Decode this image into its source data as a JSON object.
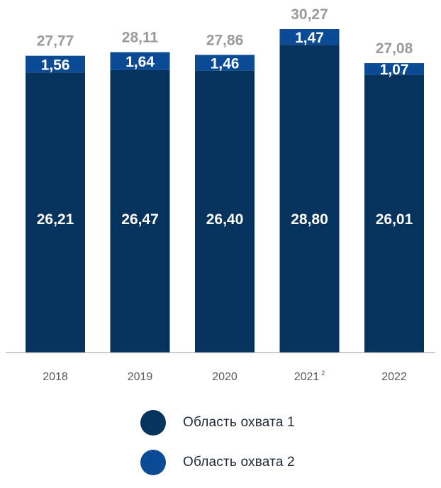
{
  "colors": {
    "series1": "#06335d",
    "series2": "#0b4a94",
    "total_label": "#9b9b9b",
    "axis_label": "#5a5a5a",
    "baseline": "#9a9a9a",
    "inner_label": "#ffffff"
  },
  "chart_data": {
    "type": "bar",
    "stacked": true,
    "categories": [
      "2018",
      "2019",
      "2020",
      "2021",
      "2022"
    ],
    "category_superscripts": [
      "",
      "",
      "",
      "2",
      ""
    ],
    "series": [
      {
        "name": "Область охвата 1",
        "values": [
          26.21,
          26.47,
          26.4,
          28.8,
          26.01
        ],
        "labels": [
          "26,21",
          "26,47",
          "26,40",
          "28,80",
          "26,01"
        ]
      },
      {
        "name": "Область охвата 2",
        "values": [
          1.56,
          1.64,
          1.46,
          1.47,
          1.07
        ],
        "labels": [
          "1,56",
          "1,64",
          "1,46",
          "1,47",
          "1,07"
        ]
      }
    ],
    "totals": [
      27.77,
      28.11,
      27.86,
      30.27,
      27.08
    ],
    "total_labels": [
      "27,77",
      "28,11",
      "27,86",
      "30,27",
      "27,08"
    ],
    "title": "",
    "xlabel": "",
    "ylabel": "",
    "ylim": [
      0,
      30.27
    ],
    "grid": false,
    "legend_position": "bottom"
  },
  "legend": {
    "items": [
      {
        "label": "Область охвата 1"
      },
      {
        "label": "Область охвата 2"
      }
    ]
  }
}
